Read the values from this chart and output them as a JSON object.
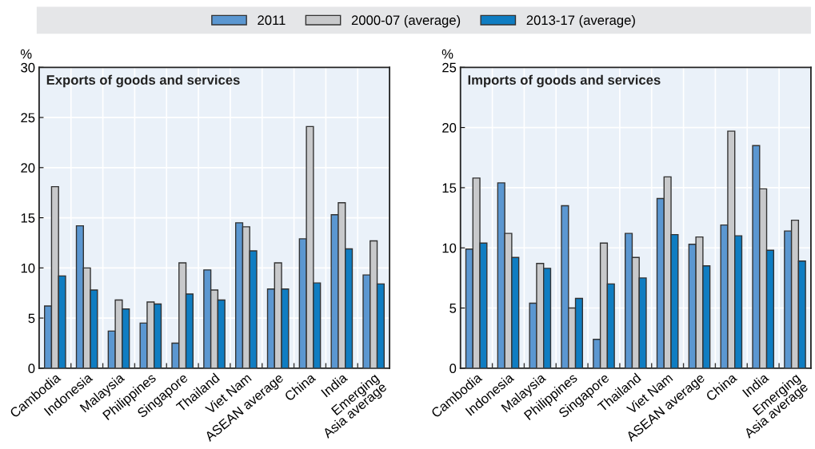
{
  "chart_data": [
    {
      "type": "bar",
      "title": "Exports of goods and services",
      "ylabel": "%",
      "categories": [
        "Cambodia",
        "Indonesia",
        "Malaysia",
        "Philippines",
        "Singapore",
        "Thailand",
        "Viet Nam",
        "ASEAN average",
        "China",
        "India",
        "Emerging\nAsia average"
      ],
      "series": [
        {
          "name": "2011",
          "color": "#5b97d1",
          "values": [
            6.2,
            14.2,
            3.7,
            4.5,
            2.5,
            9.8,
            14.5,
            7.9,
            12.9,
            15.3,
            9.3
          ]
        },
        {
          "name": "2000-07 (average)",
          "color": "#c8c9cb",
          "values": [
            18.1,
            10.0,
            6.8,
            6.6,
            10.5,
            7.8,
            14.1,
            10.5,
            24.1,
            16.5,
            12.7
          ]
        },
        {
          "name": "2013-17 (average)",
          "color": "#0f7dc2",
          "values": [
            9.2,
            7.8,
            5.9,
            6.4,
            7.4,
            6.8,
            11.7,
            7.9,
            8.5,
            11.9,
            8.4
          ]
        }
      ],
      "ylim": [
        0,
        30
      ],
      "yticks": [
        0,
        5,
        10,
        15,
        20,
        25,
        30
      ],
      "grid": true,
      "legend": "top"
    },
    {
      "type": "bar",
      "title": "Imports of goods and services",
      "ylabel": "%",
      "categories": [
        "Cambodia",
        "Indonesia",
        "Malaysia",
        "Philippines",
        "Singapore",
        "Thailand",
        "Viet Nam",
        "ASEAN average",
        "China",
        "India",
        "Emerging\nAsia average"
      ],
      "series": [
        {
          "name": "2011",
          "color": "#5b97d1",
          "values": [
            9.9,
            15.4,
            5.4,
            13.5,
            2.4,
            11.2,
            14.1,
            10.3,
            11.9,
            18.5,
            11.4
          ]
        },
        {
          "name": "2000-07 (average)",
          "color": "#c8c9cb",
          "values": [
            15.8,
            11.2,
            8.7,
            5.0,
            10.4,
            9.2,
            15.9,
            10.9,
            19.7,
            14.9,
            12.3
          ]
        },
        {
          "name": "2013-17 (average)",
          "color": "#0f7dc2",
          "values": [
            10.4,
            9.2,
            8.3,
            5.8,
            7.0,
            7.5,
            11.1,
            8.5,
            11.0,
            9.8,
            8.9
          ]
        }
      ],
      "ylim": [
        0,
        25
      ],
      "yticks": [
        0,
        5,
        10,
        15,
        20,
        25
      ],
      "grid": true,
      "legend": "top"
    }
  ]
}
